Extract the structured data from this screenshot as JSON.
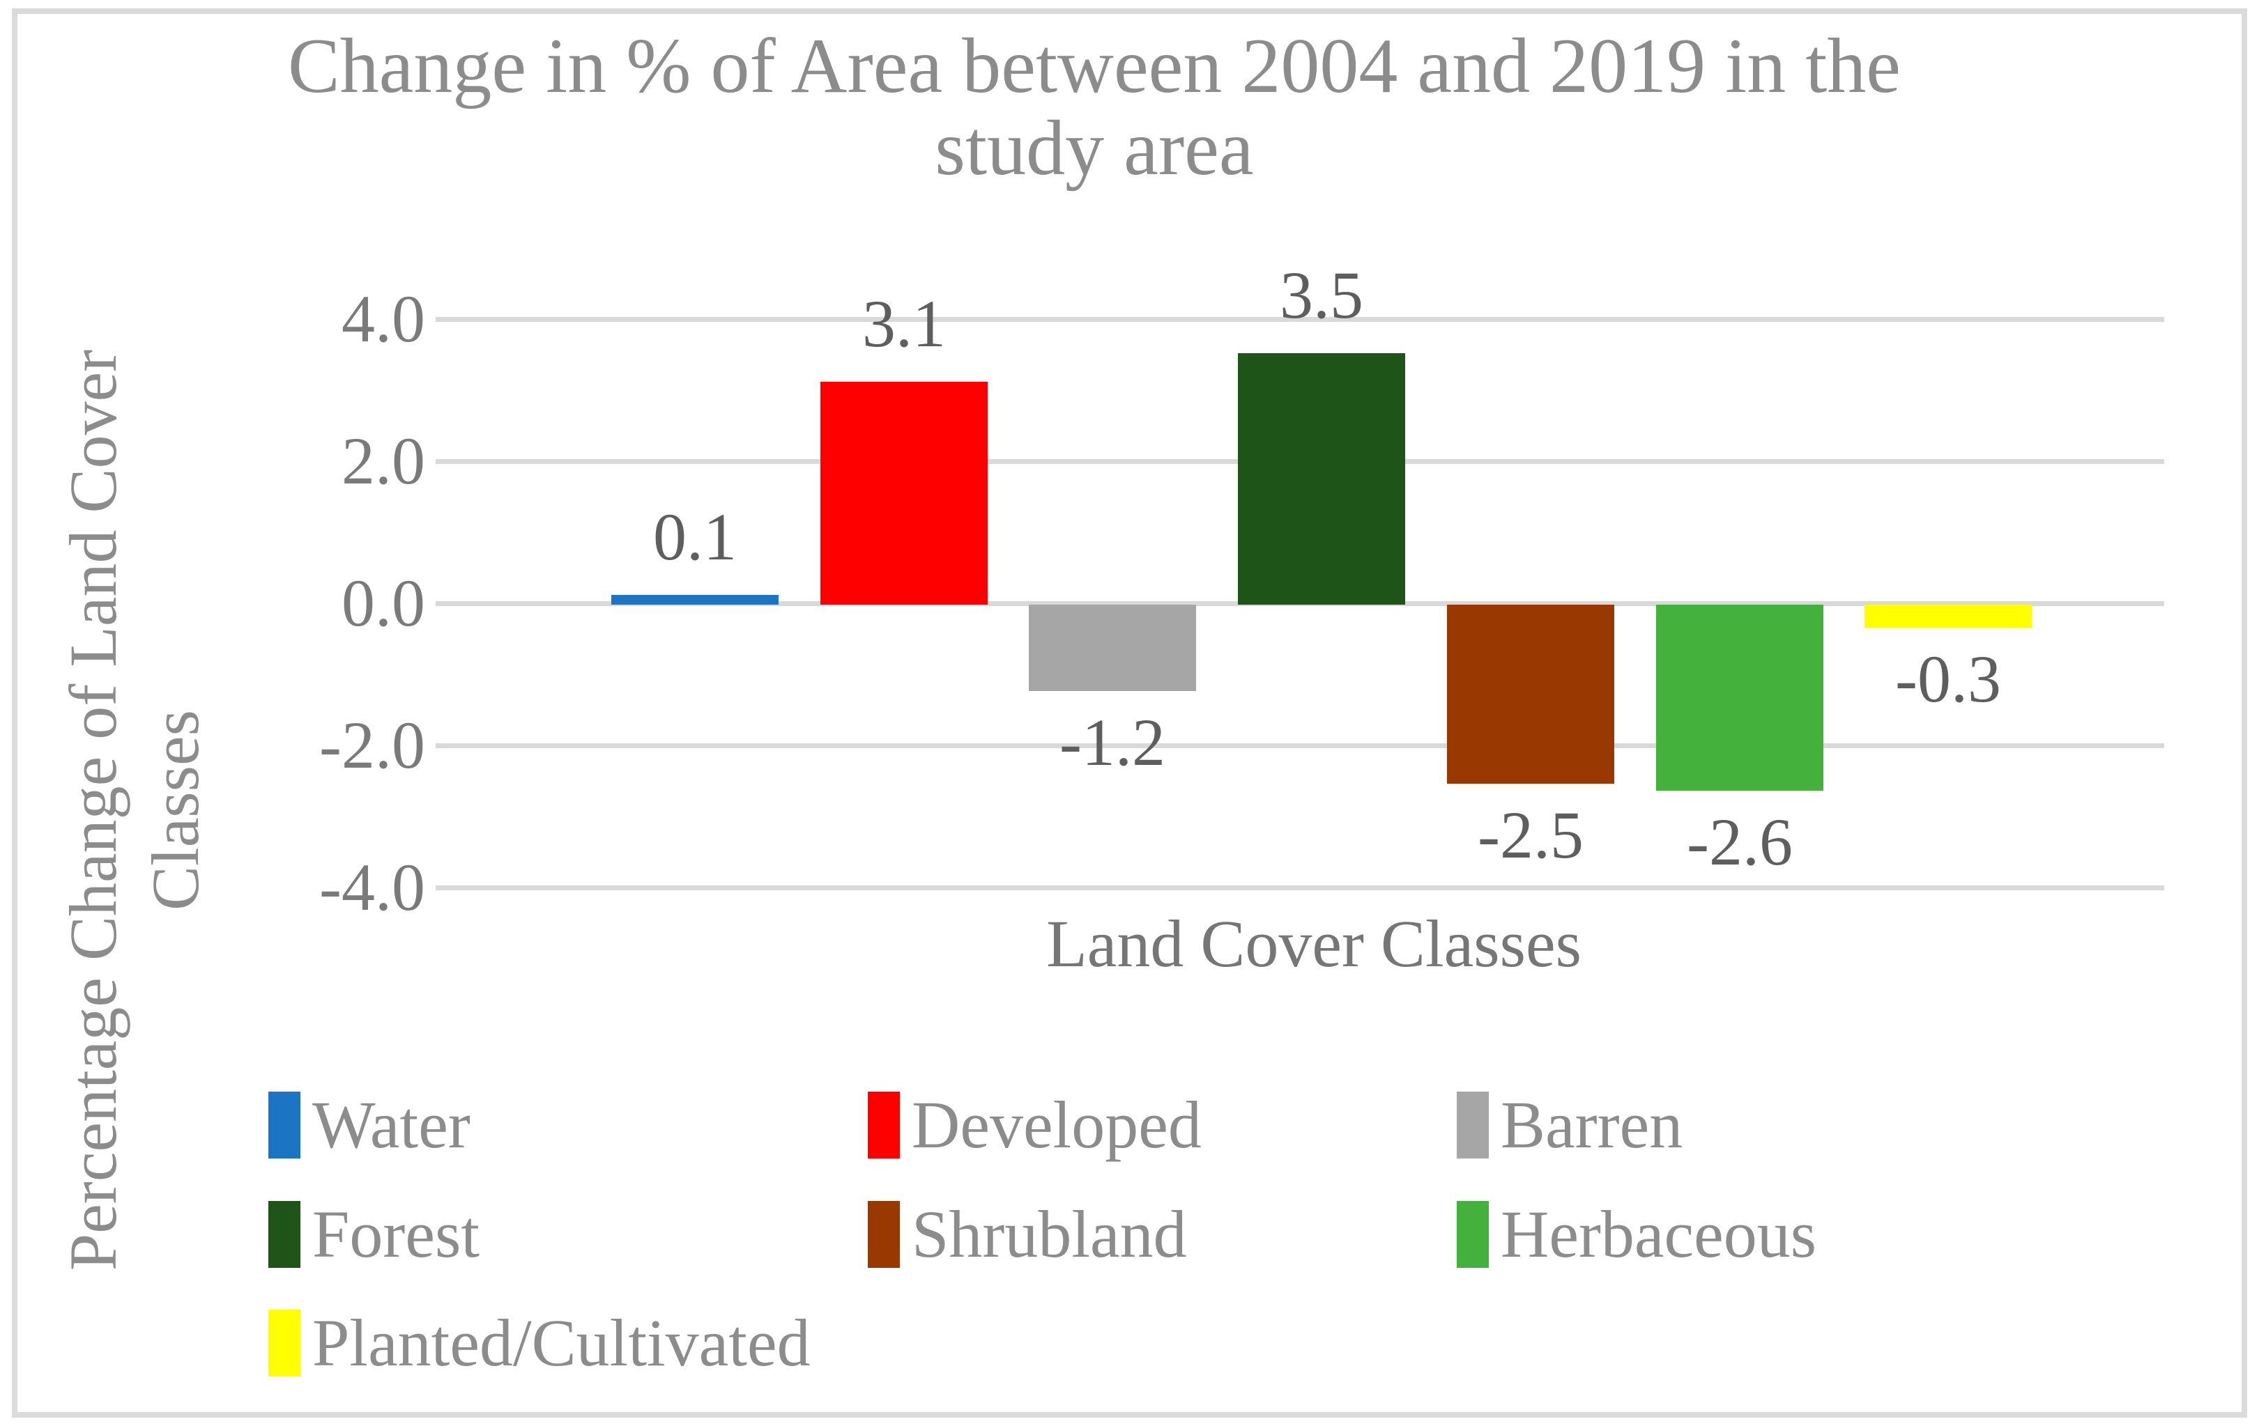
{
  "title": {
    "line1": "Change in % of Area between 2004 and 2019 in the",
    "line2": "study area"
  },
  "y_axis": {
    "title_line1": "Percentage Change of Land Cover",
    "title_line2": "Classes",
    "ticks": [
      {
        "label": "4.0",
        "value": 4.0
      },
      {
        "label": "2.0",
        "value": 2.0
      },
      {
        "label": "0.0",
        "value": 0.0
      },
      {
        "label": "-2.0",
        "value": -2.0
      },
      {
        "label": "-4.0",
        "value": -4.0
      }
    ]
  },
  "x_axis": {
    "title": "Land Cover Classes"
  },
  "chart_data": {
    "type": "bar",
    "title": "Change in % of Area between 2004 and 2019 in the study area",
    "categories": [
      "Water",
      "Developed",
      "Barren",
      "Forest",
      "Shrubland",
      "Herbaceous",
      "Planted/Cultivated"
    ],
    "values": [
      0.1,
      3.1,
      -1.2,
      3.5,
      -2.5,
      -2.6,
      -0.3
    ],
    "data_labels": [
      "0.1",
      "3.1",
      "-1.2",
      "3.5",
      "-2.5",
      "-2.6",
      "-0.3"
    ],
    "bar_colors": [
      "#1B75C4",
      "#FF0000",
      "#A6A6A6",
      "#1E5418",
      "#993800",
      "#43B13C",
      "#FFFF00"
    ],
    "xlabel": "Land Cover Classes",
    "ylabel": "Percentage Change of Land Cover Classes",
    "ylim": [
      -4.0,
      4.0
    ],
    "ytick_step": 2.0,
    "grid": true,
    "legend_position": "bottom"
  },
  "legend": {
    "items": [
      {
        "label": "Water",
        "color": "#1B75C4"
      },
      {
        "label": "Developed",
        "color": "#FF0000"
      },
      {
        "label": "Barren",
        "color": "#A6A6A6"
      },
      {
        "label": "Forest",
        "color": "#1E5418"
      },
      {
        "label": "Shrubland",
        "color": "#993800"
      },
      {
        "label": "Herbaceous",
        "color": "#43B13C"
      },
      {
        "label": "Planted/Cultivated",
        "color": "#FFFF00"
      }
    ]
  },
  "colors": {
    "gridline": "#D9D9D9",
    "border": "#DBDBDB",
    "title_text": "#8C8C8C",
    "tick_text": "#7A7A7A",
    "data_label_text": "#5E5E5E",
    "axis_title_text": "#767676"
  }
}
